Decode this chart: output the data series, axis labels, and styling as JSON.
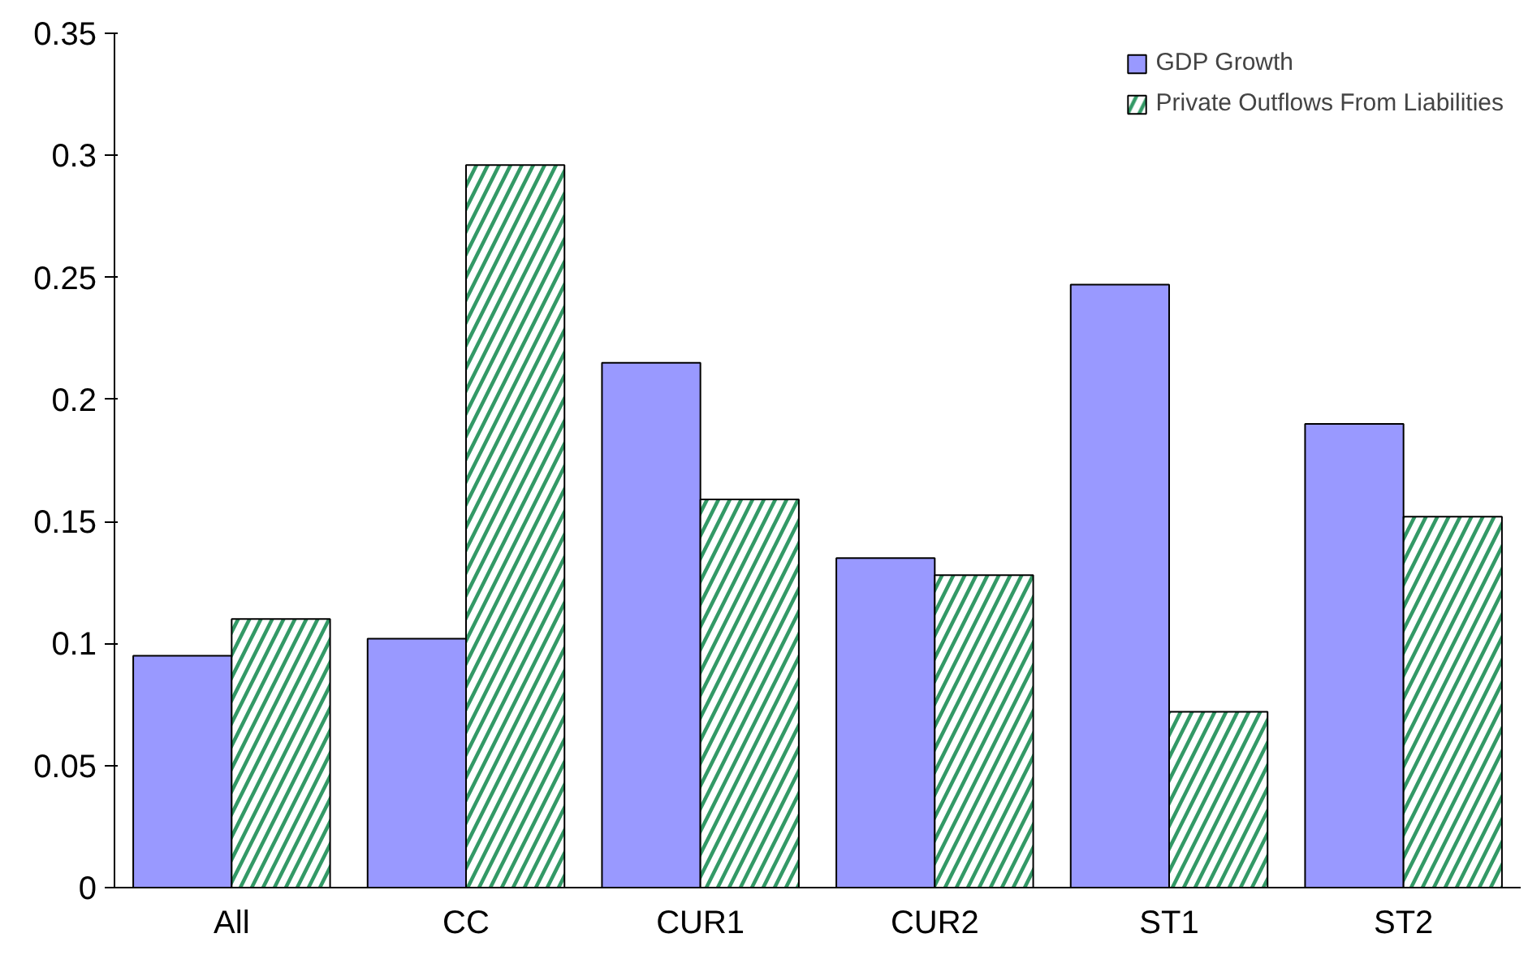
{
  "chart_data": {
    "type": "bar",
    "categories": [
      "All",
      "CC",
      "CUR1",
      "CUR2",
      "ST1",
      "ST2"
    ],
    "series": [
      {
        "name": "GDP Growth",
        "color": "#9999ff",
        "values": [
          0.095,
          0.102,
          0.215,
          0.135,
          0.247,
          0.19
        ]
      },
      {
        "name": "Private Outflows From Liabilities",
        "color": "#339966",
        "values": [
          0.11,
          0.296,
          0.159,
          0.128,
          0.072,
          0.152
        ]
      }
    ],
    "ylim": [
      0,
      0.35
    ],
    "yticks": [
      0,
      0.05,
      0.1,
      0.15,
      0.2,
      0.25,
      0.3,
      0.35
    ],
    "legend": "top right",
    "grid": false
  }
}
